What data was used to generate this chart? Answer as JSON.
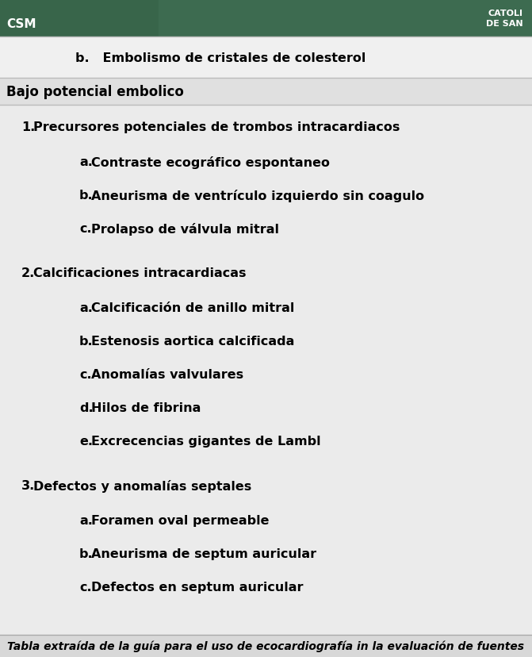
{
  "header_bg": "#3d6b50",
  "header_text_color": "#ffffff",
  "body_bg": "#e8e8e8",
  "white_bg": "#f2f2f2",
  "text_color": "#000000",
  "row_b_text": "b.   Embolismo de cristales de colesterol",
  "section_header": "Bajo potencial embolico",
  "items": [
    {
      "type": "numbered",
      "num": "1.",
      "text": "Precursores potenciales de trombos intracardiacos"
    },
    {
      "type": "lettered",
      "letter": "a.",
      "text": "Contraste ecográfico espontaneo"
    },
    {
      "type": "lettered",
      "letter": "b.",
      "text": "Aneurisma de ventrículo izquierdo sin coagulo"
    },
    {
      "type": "lettered",
      "letter": "c.",
      "text": "Prolapso de válvula mitral"
    },
    {
      "type": "numbered",
      "num": "2.",
      "text": "Calcificaciones intracardiacas"
    },
    {
      "type": "lettered",
      "letter": "a.",
      "text": "Calcificación de anillo mitral"
    },
    {
      "type": "lettered",
      "letter": "b.",
      "text": "Estenosis aortica calcificada"
    },
    {
      "type": "lettered",
      "letter": "c.",
      "text": "Anomalías valvulares"
    },
    {
      "type": "lettered",
      "letter": "d.",
      "text": "Hilos de fibrina"
    },
    {
      "type": "lettered",
      "letter": "e.",
      "text": "Excrecencias gigantes de Lambl"
    },
    {
      "type": "numbered",
      "num": "3.",
      "text": "Defectos y anomalías septales"
    },
    {
      "type": "lettered",
      "letter": "a.",
      "text": "Foramen oval permeable"
    },
    {
      "type": "lettered",
      "letter": "b.",
      "text": "Aneurisma de septum auricular"
    },
    {
      "type": "lettered",
      "letter": "c.",
      "text": "Defectos en septum auricular"
    }
  ],
  "footer_text": "Tabla extraída de la guía para el uso de ecocardiografía in la evaluación de fuentes",
  "figwidth": 6.71,
  "figheight": 8.29,
  "dpi": 100
}
